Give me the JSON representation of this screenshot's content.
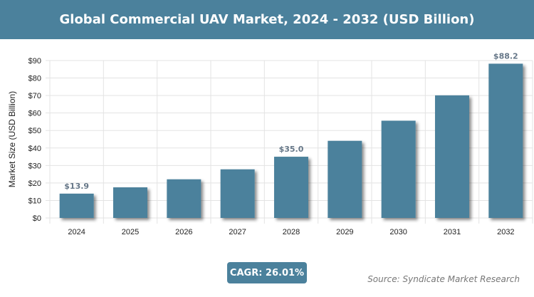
{
  "header": {
    "title": "Global Commercial UAV Market, 2024 - 2032 (USD Billion)"
  },
  "chart_data": {
    "type": "bar",
    "title": "Global Commercial UAV Market, 2024 - 2032 (USD Billion)",
    "categories": [
      "2024",
      "2025",
      "2026",
      "2027",
      "2028",
      "2029",
      "2030",
      "2031",
      "2032"
    ],
    "values": [
      13.9,
      17.5,
      22.1,
      27.8,
      35.0,
      44.1,
      55.6,
      70.1,
      88.2
    ],
    "data_labels": {
      "0": "$13.9",
      "4": "$35.0",
      "8": "$88.2"
    },
    "ylabel": "Market Size (USD Billion)",
    "xlabel": "",
    "ylim": [
      0,
      90
    ],
    "yticks": [
      "$0",
      "$10",
      "$20",
      "$30",
      "$40",
      "$50",
      "$60",
      "$70",
      "$80",
      "$90"
    ],
    "grid": true,
    "bar_color": "#4b819c"
  },
  "footer": {
    "cagr": "CAGR: 26.01%",
    "source": "Source: Syndicate Market Research"
  }
}
